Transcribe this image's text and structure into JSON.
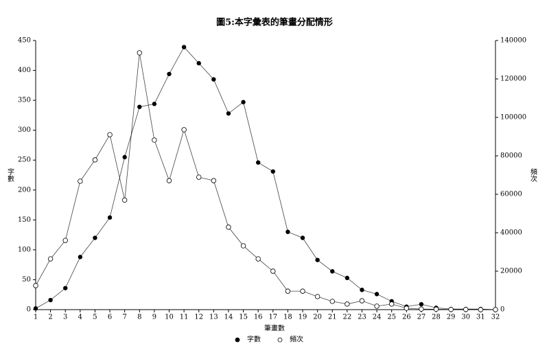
{
  "chart_data": {
    "type": "line",
    "title": "圖5:本字彙表的筆畫分配情形",
    "x_label": "筆畫數",
    "y_label": "字數",
    "y2_label": "頻次",
    "x": [
      1,
      2,
      3,
      4,
      5,
      6,
      7,
      8,
      9,
      10,
      11,
      12,
      13,
      14,
      15,
      16,
      17,
      18,
      19,
      20,
      21,
      22,
      23,
      24,
      25,
      26,
      27,
      28,
      29,
      30,
      31,
      32
    ],
    "xlim": [
      1,
      32
    ],
    "xticks": [
      1,
      2,
      3,
      4,
      5,
      6,
      7,
      8,
      9,
      10,
      11,
      12,
      13,
      14,
      15,
      16,
      17,
      18,
      19,
      20,
      21,
      22,
      23,
      24,
      25,
      26,
      27,
      28,
      29,
      30,
      31,
      32
    ],
    "ylim": [
      0,
      450
    ],
    "yticks": [
      0,
      50,
      100,
      150,
      200,
      250,
      300,
      350,
      400,
      450
    ],
    "y2lim": [
      0,
      140000
    ],
    "y2ticks": [
      0,
      20000,
      40000,
      60000,
      80000,
      100000,
      120000,
      140000
    ],
    "series": [
      {
        "name": "字數",
        "color": "#000000",
        "marker": "filled",
        "values": [
          2,
          16,
          36,
          88,
          120,
          154,
          255,
          339,
          344,
          394,
          439,
          412,
          385,
          328,
          347,
          246,
          231,
          130,
          120,
          83,
          64,
          53,
          33,
          26,
          14,
          5,
          9,
          3,
          1,
          1,
          1,
          0
        ]
      },
      {
        "name": "頻次",
        "color": "#000000",
        "marker": "hollow",
        "axis": "y2",
        "values": [
          12500,
          26400,
          36000,
          66800,
          77900,
          91000,
          57000,
          133600,
          88200,
          67100,
          93600,
          68900,
          67100,
          42900,
          33200,
          26400,
          20000,
          9600,
          9600,
          6800,
          4300,
          2900,
          4600,
          1800,
          2900,
          700,
          300,
          200,
          100,
          100,
          0,
          0
        ]
      }
    ]
  }
}
